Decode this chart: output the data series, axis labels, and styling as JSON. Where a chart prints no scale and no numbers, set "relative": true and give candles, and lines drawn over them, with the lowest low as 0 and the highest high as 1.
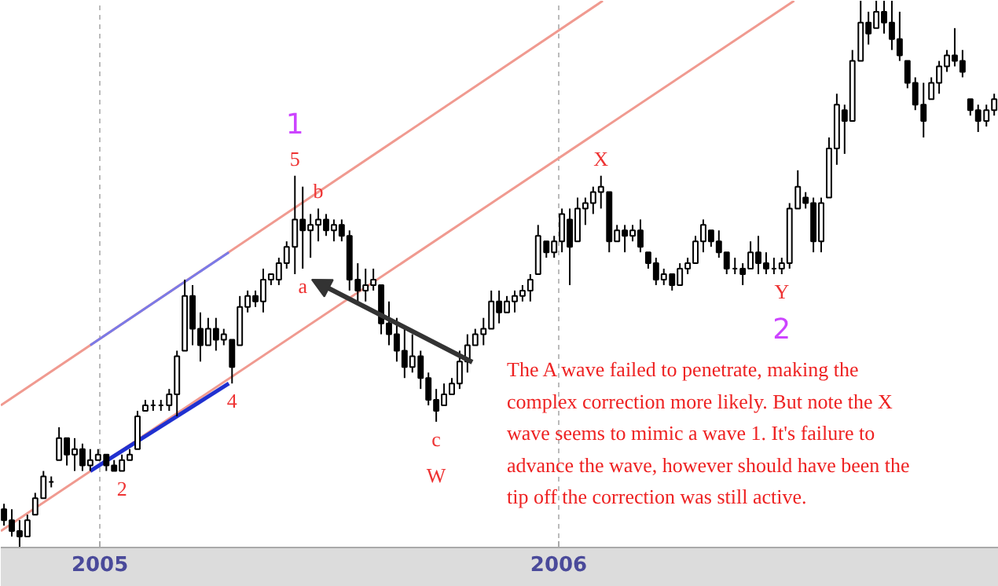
{
  "chart_data": {
    "type": "candlestick",
    "relative": true,
    "tick_labels": "x",
    "grid": "x",
    "xlim": [
      2004.784,
      2006.959
    ],
    "xticks": [
      2005,
      2006
    ],
    "x": [
      2004.791,
      2004.808,
      2004.825,
      2004.842,
      2004.859,
      2004.877,
      2004.894,
      2004.911,
      2004.928,
      2004.945,
      2004.962,
      2004.979,
      2004.996,
      2005.014,
      2005.031,
      2005.048,
      2005.065,
      2005.082,
      2005.099,
      2005.116,
      2005.133,
      2005.151,
      2005.168,
      2005.185,
      2005.202,
      2005.219,
      2005.236,
      2005.253,
      2005.27,
      2005.288,
      2005.305,
      2005.322,
      2005.339,
      2005.356,
      2005.373,
      2005.39,
      2005.407,
      2005.425,
      2005.442,
      2005.459,
      2005.476,
      2005.493,
      2005.51,
      2005.527,
      2005.544,
      2005.562,
      2005.579,
      2005.596,
      2005.613,
      2005.63,
      2005.647,
      2005.664,
      2005.681,
      2005.699,
      2005.716,
      2005.733,
      2005.75,
      2005.767,
      2005.784,
      2005.801,
      2005.818,
      2005.836,
      2005.853,
      2005.87,
      2005.887,
      2005.904,
      2005.921,
      2005.938,
      2005.955,
      2005.973,
      2005.99,
      2006.007,
      2006.024,
      2006.041,
      2006.058,
      2006.075,
      2006.092,
      2006.11,
      2006.127,
      2006.144,
      2006.161,
      2006.178,
      2006.195,
      2006.212,
      2006.229,
      2006.247,
      2006.264,
      2006.281,
      2006.298,
      2006.315,
      2006.332,
      2006.349,
      2006.366,
      2006.384,
      2006.401,
      2006.418,
      2006.435,
      2006.452,
      2006.469,
      2006.486,
      2006.503,
      2006.521,
      2006.538,
      2006.555,
      2006.572,
      2006.589,
      2006.606,
      2006.623,
      2006.64,
      2006.658,
      2006.675,
      2006.692,
      2006.709,
      2006.726,
      2006.743,
      2006.76,
      2006.777,
      2006.795,
      2006.812,
      2006.829,
      2006.846,
      2006.863,
      2006.88,
      2006.897,
      2006.914,
      2006.932,
      2006.949
    ],
    "ohlc": [
      [
        0.07,
        0.08,
        0.04,
        0.05
      ],
      [
        0.05,
        0.07,
        0.02,
        0.03
      ],
      [
        0.03,
        0.05,
        0,
        0.02
      ],
      [
        0.02,
        0.06,
        0.02,
        0.05
      ],
      [
        0.06,
        0.1,
        0.06,
        0.09
      ],
      [
        0.09,
        0.14,
        0.09,
        0.13
      ],
      [
        0.12,
        0.13,
        0.11,
        0.12
      ],
      [
        0.16,
        0.22,
        0.16,
        0.2
      ],
      [
        0.2,
        0.2,
        0.15,
        0.17
      ],
      [
        0.17,
        0.2,
        0.14,
        0.18
      ],
      [
        0.18,
        0.19,
        0.14,
        0.15
      ],
      [
        0.15,
        0.18,
        0.14,
        0.16
      ],
      [
        0.16,
        0.18,
        0.16,
        0.17
      ],
      [
        0.17,
        0.17,
        0.14,
        0.15
      ],
      [
        0.15,
        0.16,
        0.14,
        0.14
      ],
      [
        0.14,
        0.17,
        0.14,
        0.16
      ],
      [
        0.16,
        0.18,
        0.16,
        0.17
      ],
      [
        0.18,
        0.25,
        0.18,
        0.24
      ],
      [
        0.25,
        0.27,
        0.25,
        0.26
      ],
      [
        0.26,
        0.27,
        0.25,
        0.26
      ],
      [
        0.26,
        0.27,
        0.25,
        0.26
      ],
      [
        0.26,
        0.29,
        0.25,
        0.28
      ],
      [
        0.28,
        0.36,
        0.24,
        0.35
      ],
      [
        0.36,
        0.49,
        0.36,
        0.46
      ],
      [
        0.46,
        0.48,
        0.37,
        0.4
      ],
      [
        0.4,
        0.43,
        0.34,
        0.37
      ],
      [
        0.37,
        0.42,
        0.37,
        0.4
      ],
      [
        0.4,
        0.42,
        0.36,
        0.38
      ],
      [
        0.38,
        0.4,
        0.37,
        0.39
      ],
      [
        0.38,
        0.38,
        0.3,
        0.33
      ],
      [
        0.37,
        0.46,
        0.37,
        0.44
      ],
      [
        0.44,
        0.47,
        0.43,
        0.46
      ],
      [
        0.46,
        0.47,
        0.44,
        0.45
      ],
      [
        0.45,
        0.51,
        0.43,
        0.49
      ],
      [
        0.49,
        0.5,
        0.48,
        0.5
      ],
      [
        0.49,
        0.53,
        0.48,
        0.52
      ],
      [
        0.52,
        0.56,
        0.51,
        0.55
      ],
      [
        0.55,
        0.68,
        0.5,
        0.6
      ],
      [
        0.6,
        0.66,
        0.51,
        0.58
      ],
      [
        0.58,
        0.61,
        0.53,
        0.59
      ],
      [
        0.59,
        0.62,
        0.56,
        0.6
      ],
      [
        0.6,
        0.61,
        0.57,
        0.58
      ],
      [
        0.58,
        0.6,
        0.56,
        0.59
      ],
      [
        0.59,
        0.6,
        0.56,
        0.57
      ],
      [
        0.57,
        0.58,
        0.47,
        0.49
      ],
      [
        0.49,
        0.52,
        0.45,
        0.47
      ],
      [
        0.47,
        0.51,
        0.45,
        0.48
      ],
      [
        0.48,
        0.51,
        0.47,
        0.49
      ],
      [
        0.48,
        0.48,
        0.39,
        0.41
      ],
      [
        0.41,
        0.45,
        0.37,
        0.39
      ],
      [
        0.39,
        0.42,
        0.34,
        0.36
      ],
      [
        0.36,
        0.4,
        0.31,
        0.33
      ],
      [
        0.33,
        0.39,
        0.32,
        0.35
      ],
      [
        0.35,
        0.36,
        0.29,
        0.31
      ],
      [
        0.31,
        0.32,
        0.26,
        0.27
      ],
      [
        0.27,
        0.29,
        0.23,
        0.25
      ],
      [
        0.26,
        0.3,
        0.26,
        0.28
      ],
      [
        0.28,
        0.31,
        0.28,
        0.3
      ],
      [
        0.3,
        0.36,
        0.29,
        0.34
      ],
      [
        0.34,
        0.39,
        0.32,
        0.37
      ],
      [
        0.37,
        0.4,
        0.37,
        0.39
      ],
      [
        0.39,
        0.42,
        0.37,
        0.4
      ],
      [
        0.4,
        0.47,
        0.4,
        0.45
      ],
      [
        0.45,
        0.47,
        0.41,
        0.43
      ],
      [
        0.43,
        0.46,
        0.43,
        0.45
      ],
      [
        0.45,
        0.47,
        0.43,
        0.46
      ],
      [
        0.46,
        0.48,
        0.45,
        0.47
      ],
      [
        0.47,
        0.5,
        0.45,
        0.49
      ],
      [
        0.5,
        0.59,
        0.5,
        0.57
      ],
      [
        0.56,
        0.56,
        0.53,
        0.54
      ],
      [
        0.54,
        0.57,
        0.53,
        0.56
      ],
      [
        0.56,
        0.62,
        0.54,
        0.61
      ],
      [
        0.6,
        0.62,
        0.48,
        0.55
      ],
      [
        0.56,
        0.64,
        0.56,
        0.62
      ],
      [
        0.62,
        0.64,
        0.59,
        0.63
      ],
      [
        0.63,
        0.66,
        0.61,
        0.65
      ],
      [
        0.65,
        0.68,
        0.62,
        0.66
      ],
      [
        0.65,
        0.65,
        0.54,
        0.56
      ],
      [
        0.56,
        0.59,
        0.56,
        0.58
      ],
      [
        0.58,
        0.59,
        0.54,
        0.57
      ],
      [
        0.57,
        0.59,
        0.56,
        0.58
      ],
      [
        0.58,
        0.6,
        0.54,
        0.55
      ],
      [
        0.54,
        0.54,
        0.51,
        0.52
      ],
      [
        0.52,
        0.53,
        0.48,
        0.49
      ],
      [
        0.49,
        0.51,
        0.48,
        0.5
      ],
      [
        0.5,
        0.5,
        0.47,
        0.48
      ],
      [
        0.48,
        0.52,
        0.48,
        0.51
      ],
      [
        0.51,
        0.53,
        0.5,
        0.52
      ],
      [
        0.52,
        0.57,
        0.52,
        0.56
      ],
      [
        0.56,
        0.6,
        0.54,
        0.59
      ],
      [
        0.58,
        0.58,
        0.55,
        0.56
      ],
      [
        0.56,
        0.58,
        0.53,
        0.54
      ],
      [
        0.54,
        0.54,
        0.5,
        0.51
      ],
      [
        0.51,
        0.53,
        0.5,
        0.51
      ],
      [
        0.51,
        0.52,
        0.48,
        0.5
      ],
      [
        0.51,
        0.56,
        0.51,
        0.54
      ],
      [
        0.54,
        0.57,
        0.5,
        0.52
      ],
      [
        0.52,
        0.54,
        0.5,
        0.51
      ],
      [
        0.51,
        0.53,
        0.5,
        0.51
      ],
      [
        0.51,
        0.53,
        0.5,
        0.52
      ],
      [
        0.52,
        0.63,
        0.51,
        0.62
      ],
      [
        0.62,
        0.69,
        0.62,
        0.66
      ],
      [
        0.64,
        0.65,
        0.62,
        0.63
      ],
      [
        0.63,
        0.64,
        0.54,
        0.56
      ],
      [
        0.56,
        0.64,
        0.54,
        0.63
      ],
      [
        0.64,
        0.75,
        0.64,
        0.73
      ],
      [
        0.73,
        0.83,
        0.7,
        0.81
      ],
      [
        0.8,
        0.81,
        0.72,
        0.78
      ],
      [
        0.78,
        0.91,
        0.78,
        0.89
      ],
      [
        0.89,
        1.0,
        0.89,
        0.96
      ],
      [
        0.96,
        0.98,
        0.92,
        0.94
      ],
      [
        0.95,
        1.0,
        0.95,
        0.98
      ],
      [
        0.98,
        1.0,
        0.94,
        0.96
      ],
      [
        0.96,
        1.0,
        0.91,
        0.93
      ],
      [
        0.93,
        0.98,
        0.89,
        0.9
      ],
      [
        0.89,
        0.89,
        0.84,
        0.85
      ],
      [
        0.85,
        0.86,
        0.8,
        0.81
      ],
      [
        0.81,
        0.85,
        0.75,
        0.78
      ],
      [
        0.82,
        0.86,
        0.82,
        0.85
      ],
      [
        0.85,
        0.89,
        0.83,
        0.88
      ],
      [
        0.88,
        0.91,
        0.87,
        0.9
      ],
      [
        0.9,
        0.95,
        0.88,
        0.89
      ],
      [
        0.89,
        0.91,
        0.86,
        0.87
      ],
      [
        0.82,
        0.82,
        0.79,
        0.8
      ],
      [
        0.8,
        0.81,
        0.76,
        0.78
      ],
      [
        0.78,
        0.81,
        0.77,
        0.8
      ],
      [
        0.8,
        0.83,
        0.79,
        0.82
      ]
    ],
    "series": [
      {
        "type": "line",
        "color": "#f09a90",
        "x": [
          2004.784,
          2006.096
        ],
        "values": [
          0.26,
          1.0
        ]
      },
      {
        "type": "line",
        "color": "#f09a90",
        "x": [
          2004.784,
          2006.513
        ],
        "values": [
          0.03,
          1.0
        ]
      },
      {
        "type": "line",
        "color": "#7a7ae8",
        "x": [
          2004.979,
          2005.281
        ],
        "values": [
          0.37,
          0.54
        ]
      },
      {
        "type": "line",
        "color": "#2030d0",
        "x": [
          2004.979,
          2005.281
        ],
        "values": [
          0.14,
          0.3
        ]
      }
    ],
    "annotations": [
      {
        "text": "5",
        "x": 2005.425,
        "y": 0.68
      },
      {
        "text": "1",
        "x": 2005.425,
        "y": 0.68
      },
      {
        "text": "b",
        "x": 2005.476,
        "y": 0.62
      },
      {
        "text": "a",
        "x": 2005.442,
        "y": 0.51
      },
      {
        "text": "2",
        "x": 2005.048,
        "y": 0.14
      },
      {
        "text": "4",
        "x": 2005.288,
        "y": 0.3
      },
      {
        "text": "c",
        "x": 2005.733,
        "y": 0.23
      },
      {
        "text": "W",
        "x": 2005.733,
        "y": 0.23
      },
      {
        "text": "X",
        "x": 2006.092,
        "y": 0.68
      },
      {
        "text": "Y",
        "x": 2006.486,
        "y": 0.5
      },
      {
        "text": "2",
        "x": 2006.486,
        "y": 0.5
      },
      "The A wave failed to penetrate, making the complex correction more likely. But note the X wave seems to mimic a wave 1.  It's failure to advance the wave, however should have been the tip off the correction was still active."
    ]
  }
}
